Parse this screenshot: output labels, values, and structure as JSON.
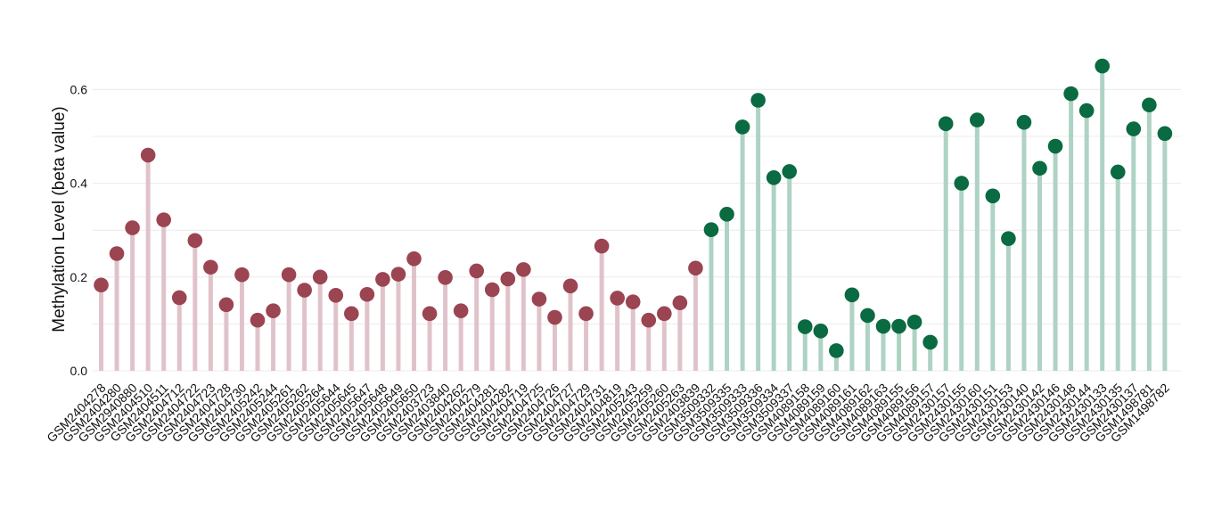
{
  "chart_data": {
    "type": "lollipop",
    "ylabel": "Methylation Level (beta value)",
    "xlabel": "",
    "ylim": [
      0,
      0.7
    ],
    "yticks": [
      "0.0",
      "0.2",
      "0.4",
      "0.6"
    ],
    "grid": true,
    "colors": {
      "group1_point": "#9b4452",
      "group1_stem": "#e0c3ca",
      "group2_point": "#0a6a41",
      "group2_stem": "#aed3c4",
      "grid": "#ececec"
    },
    "series": [
      {
        "group": 1,
        "categories": [
          "GSM2404278",
          "GSM2404280",
          "GSM2940880",
          "GSM2404510",
          "GSM2404511",
          "GSM2404712",
          "GSM2404722",
          "GSM2404723",
          "GSM2404728",
          "GSM2404730",
          "GSM2405242",
          "GSM2405244",
          "GSM2405261",
          "GSM2405262",
          "GSM2405264",
          "GSM2405644",
          "GSM2405645",
          "GSM2405647",
          "GSM2405648",
          "GSM2405649",
          "GSM2405650",
          "GSM2403723",
          "GSM2403840",
          "GSM2404262",
          "GSM2404279",
          "GSM2404281",
          "GSM2404282",
          "GSM2404719",
          "GSM2404725",
          "GSM2404726",
          "GSM2404727",
          "GSM2404729",
          "GSM2404731",
          "GSM2404819",
          "GSM2405243",
          "GSM2405259",
          "GSM2405260",
          "GSM2405263",
          "GSM2403839"
        ],
        "values": [
          0.183,
          0.25,
          0.305,
          0.46,
          0.322,
          0.156,
          0.278,
          0.221,
          0.141,
          0.205,
          0.108,
          0.128,
          0.205,
          0.172,
          0.2,
          0.161,
          0.122,
          0.163,
          0.195,
          0.206,
          0.239,
          0.122,
          0.199,
          0.128,
          0.213,
          0.173,
          0.196,
          0.216,
          0.153,
          0.114,
          0.181,
          0.122,
          0.266,
          0.155,
          0.147,
          0.108,
          0.122,
          0.145,
          0.219
        ]
      },
      {
        "group": 2,
        "categories": [
          "GSM3509332",
          "GSM3509335",
          "GSM3509333",
          "GSM3509336",
          "GSM3509334",
          "GSM3509337",
          "GSM4089158",
          "GSM4089159",
          "GSM4089160",
          "GSM4089161",
          "GSM4089162",
          "GSM4089163",
          "GSM4089155",
          "GSM4089156",
          "GSM4089157",
          "GSM2430157",
          "GSM2430155",
          "GSM2430160",
          "GSM2430151",
          "GSM2430153",
          "GSM2430140",
          "GSM2430142",
          "GSM2430146",
          "GSM2430148",
          "GSM2430144",
          "GSM2430133",
          "GSM2430135",
          "GSM2430137",
          "GSM1498781",
          "GSM1498782"
        ],
        "values": [
          0.301,
          0.334,
          0.52,
          0.577,
          0.412,
          0.425,
          0.094,
          0.085,
          0.043,
          0.162,
          0.118,
          0.095,
          0.095,
          0.104,
          0.061,
          0.527,
          0.4,
          0.535,
          0.373,
          0.282,
          0.53,
          0.432,
          0.479,
          0.591,
          0.555,
          0.65,
          0.424,
          0.516,
          0.567,
          0.506
        ]
      }
    ]
  }
}
